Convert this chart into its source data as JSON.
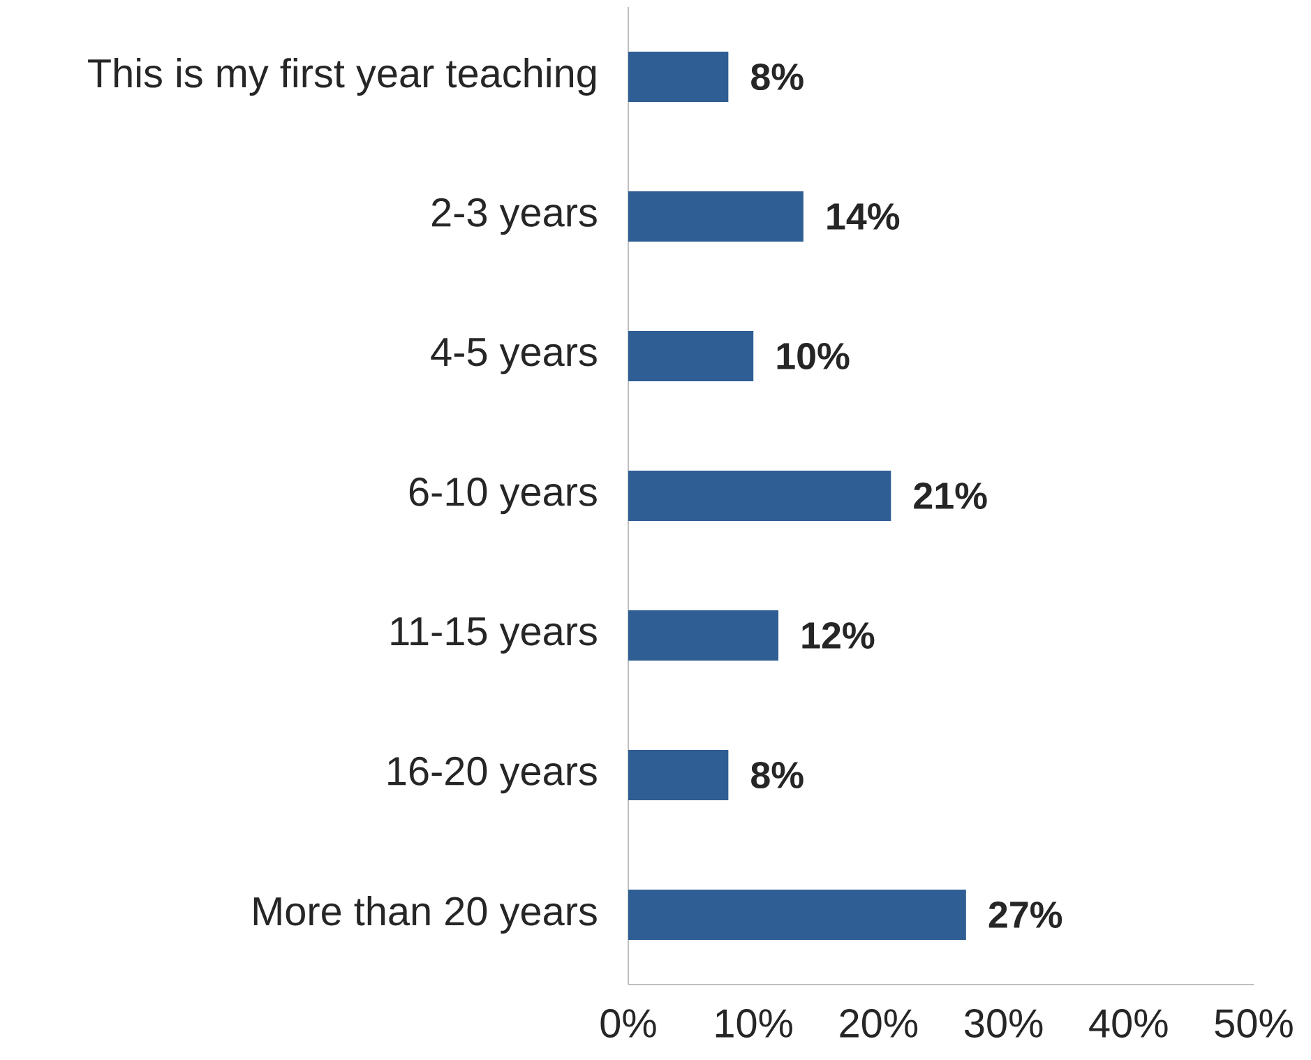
{
  "chart_data": {
    "type": "bar",
    "orientation": "horizontal",
    "categories": [
      "This is my first year teaching",
      "2-3 years",
      "4-5 years",
      "6-10 years",
      "11-15 years",
      "16-20 years",
      "More than 20 years"
    ],
    "values": [
      8,
      14,
      10,
      21,
      12,
      8,
      27
    ],
    "value_labels": [
      "8%",
      "14%",
      "10%",
      "21%",
      "12%",
      "8%",
      "27%"
    ],
    "color": "#2e5e93",
    "xlim": [
      0,
      50
    ],
    "xticks": [
      {
        "value": 0,
        "label": "0%"
      },
      {
        "value": 10,
        "label": "10%"
      },
      {
        "value": 20,
        "label": "20%"
      },
      {
        "value": 30,
        "label": "30%"
      },
      {
        "value": 40,
        "label": "40%"
      },
      {
        "value": 50,
        "label": "50%"
      }
    ],
    "grid": false
  }
}
